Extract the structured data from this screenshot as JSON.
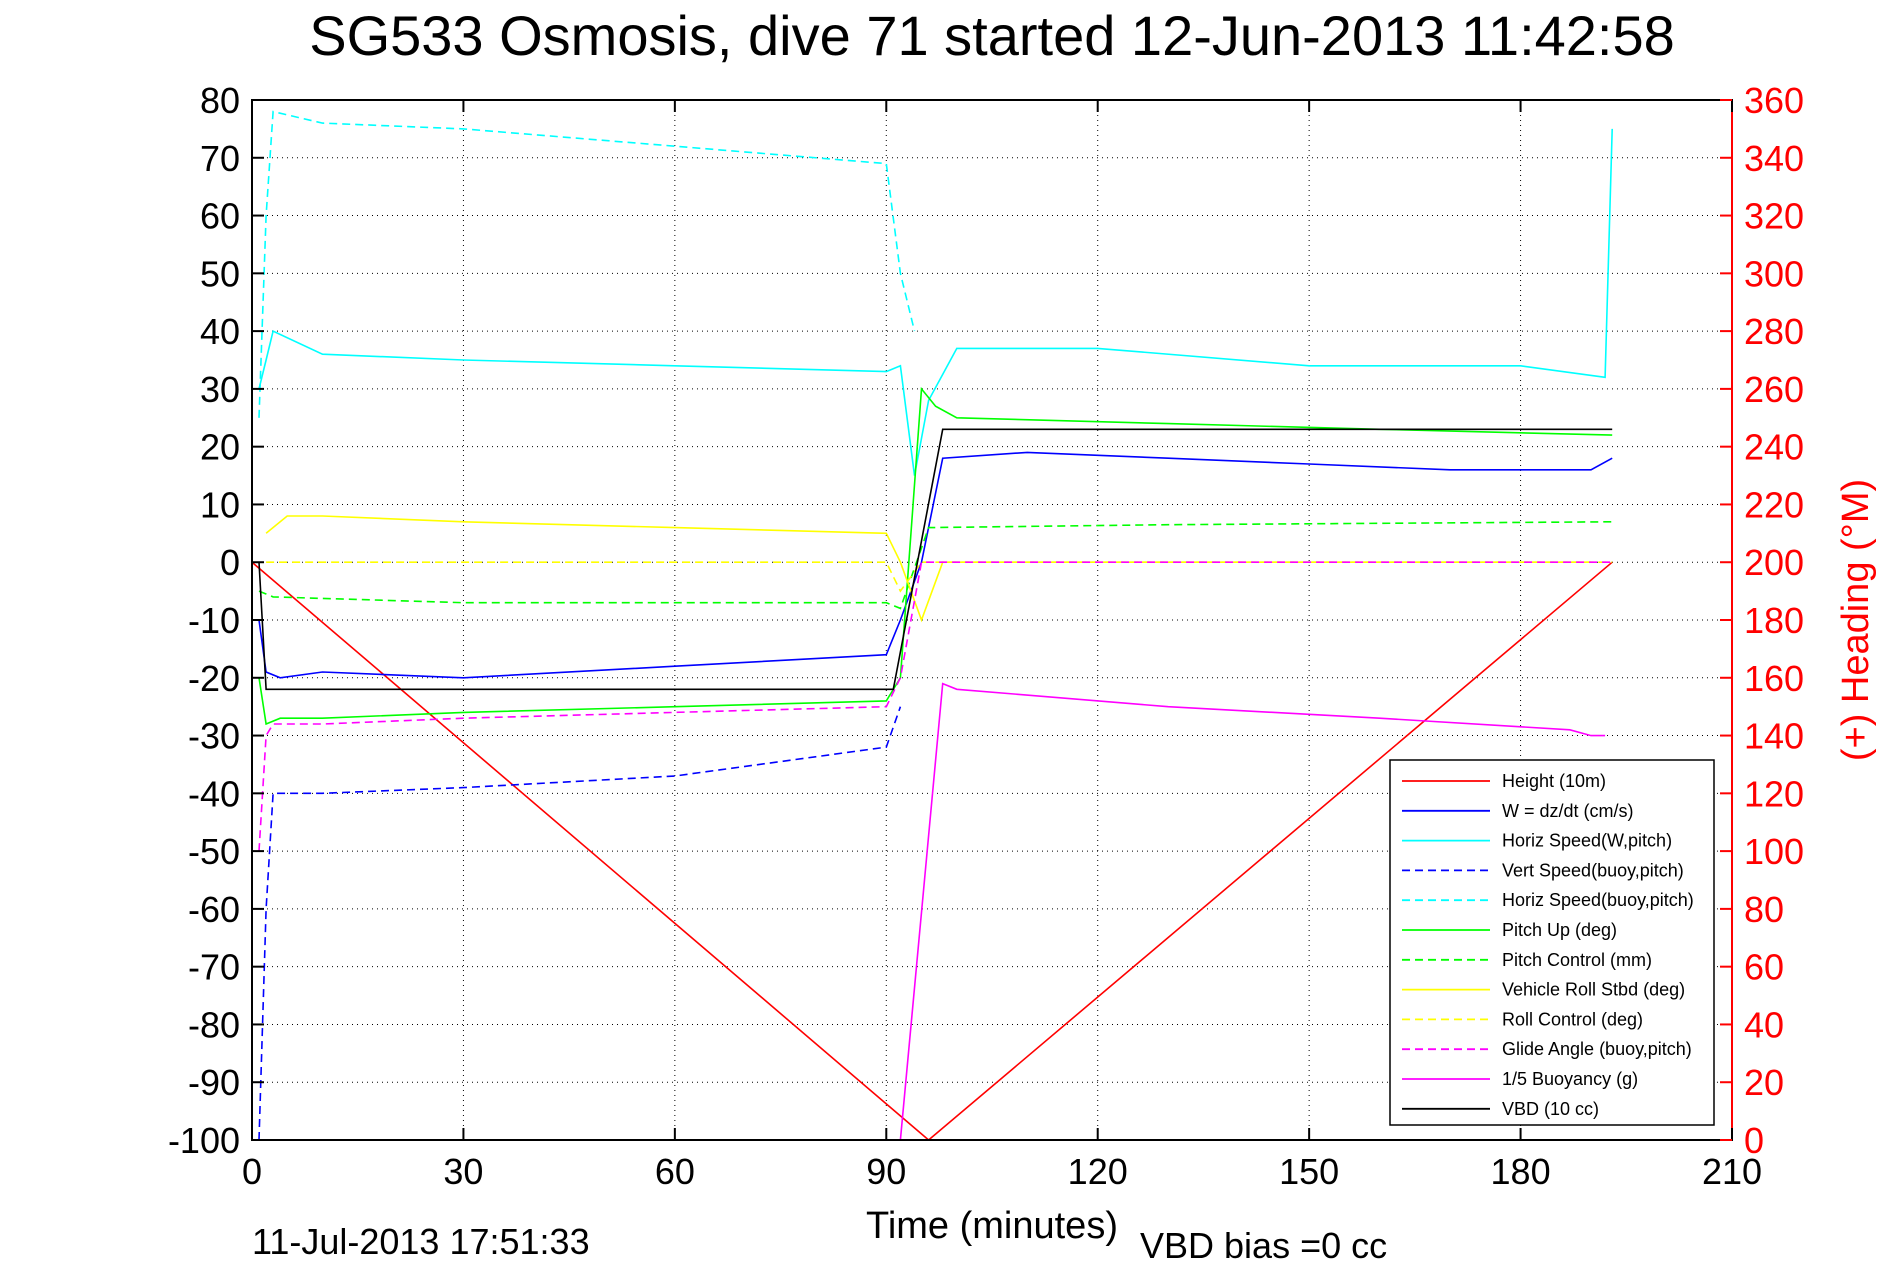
{
  "chart_data": {
    "type": "line",
    "title": "SG533 Osmosis, dive 71 started 12-Jun-2013 11:42:58",
    "xlabel": "Time (minutes)",
    "ylabel_right": "(+) Heading (°M)",
    "xlim": [
      0,
      210
    ],
    "ylim": [
      -100,
      80
    ],
    "ylim_right": [
      0,
      360
    ],
    "xticks": [
      "0",
      "30",
      "60",
      "90",
      "120",
      "150",
      "180",
      "210"
    ],
    "yticks": [
      "80",
      "70",
      "60",
      "50",
      "40",
      "30",
      "20",
      "10",
      "0",
      "-10",
      "-20",
      "-30",
      "-40",
      "-50",
      "-60",
      "-70",
      "-80",
      "-90",
      "-100"
    ],
    "yticks_right": [
      "360",
      "340",
      "320",
      "300",
      "280",
      "260",
      "240",
      "220",
      "200",
      "180",
      "160",
      "140",
      "120",
      "100",
      "80",
      "60",
      "40",
      "20",
      "0"
    ],
    "grid": true,
    "legend_position": "bottom-right",
    "footer_left": "11-Jul-2013 17:51:33",
    "footer_right": "VBD bias =0 cc",
    "series": [
      {
        "name": "Height (10m)",
        "color": "#ff0000",
        "style": "solid",
        "x": [
          0,
          96,
          193
        ],
        "y": [
          0,
          -100,
          0
        ]
      },
      {
        "name": "W = dz/dt (cm/s)",
        "color": "#0000ff",
        "style": "solid",
        "x": [
          1,
          2,
          4,
          10,
          30,
          60,
          90,
          92,
          95,
          98,
          110,
          130,
          150,
          170,
          190,
          193
        ],
        "y": [
          -10,
          -19,
          -20,
          -19,
          -20,
          -18,
          -16,
          -10,
          0,
          18,
          19,
          18,
          17,
          16,
          16,
          18
        ]
      },
      {
        "name": "Horiz Speed(W,pitch)",
        "color": "#00ffff",
        "style": "solid",
        "x": [
          1,
          2,
          3,
          10,
          30,
          60,
          90,
          92,
          94,
          96,
          100,
          120,
          150,
          180,
          192,
          193
        ],
        "y": [
          30,
          35,
          40,
          36,
          35,
          34,
          33,
          34,
          15,
          28,
          37,
          37,
          34,
          34,
          32,
          75
        ]
      },
      {
        "name": "Vert Speed(buoy,pitch)",
        "color": "#0000ff",
        "style": "dashed",
        "x": [
          1,
          2,
          3,
          10,
          30,
          60,
          90,
          92
        ],
        "y": [
          -100,
          -60,
          -40,
          -40,
          -39,
          -37,
          -32,
          -25
        ]
      },
      {
        "name": "Horiz Speed(buoy,pitch)",
        "color": "#00ffff",
        "style": "dashed",
        "x": [
          1,
          2,
          3,
          10,
          30,
          60,
          90,
          92,
          94
        ],
        "y": [
          25,
          60,
          78,
          76,
          75,
          72,
          69,
          50,
          40
        ]
      },
      {
        "name": "Pitch Up (deg)",
        "color": "#00ff00",
        "style": "solid",
        "x": [
          1,
          2,
          4,
          10,
          30,
          60,
          90,
          92,
          95,
          97,
          100,
          130,
          160,
          193
        ],
        "y": [
          -20,
          -28,
          -27,
          -27,
          -26,
          -25,
          -24,
          -20,
          30,
          27,
          25,
          24,
          23,
          22
        ]
      },
      {
        "name": "Pitch Control (mm)",
        "color": "#00ff00",
        "style": "dashed",
        "x": [
          1,
          3,
          30,
          60,
          90,
          92,
          96,
          130,
          193
        ],
        "y": [
          -5,
          -6,
          -7,
          -7,
          -7,
          -8,
          6,
          6.5,
          7
        ]
      },
      {
        "name": "Vehicle Roll Stbd (deg)",
        "color": "#ffff00",
        "style": "solid",
        "x": [
          2,
          5,
          10,
          30,
          60,
          90,
          92,
          95,
          98,
          130,
          190
        ],
        "y": [
          5,
          8,
          8,
          7,
          6,
          5,
          0,
          -10,
          0,
          0,
          0
        ]
      },
      {
        "name": "Roll Control (deg)",
        "color": "#ffff00",
        "style": "dashed",
        "x": [
          2,
          5,
          60,
          90,
          92,
          95,
          193
        ],
        "y": [
          0,
          0,
          0,
          0,
          -5,
          0,
          0
        ]
      },
      {
        "name": "Glide Angle (buoy,pitch)",
        "color": "#ff00ff",
        "style": "dashed",
        "x": [
          1,
          2,
          3,
          10,
          30,
          60,
          90,
          92,
          95,
          130,
          190,
          193
        ],
        "y": [
          -50,
          -30,
          -28,
          -28,
          -27,
          -26,
          -25,
          -20,
          0,
          0,
          0,
          0
        ]
      },
      {
        "name": "1/5 Buoyancy (g)",
        "color": "#ff00ff",
        "style": "solid",
        "x": [
          91,
          92,
          98,
          100,
          130,
          160,
          187,
          190,
          192
        ],
        "y": [
          -100,
          -100,
          -21,
          -22,
          -25,
          -27,
          -29,
          -30,
          -30
        ]
      },
      {
        "name": "VBD (10 cc)",
        "color": "#000000",
        "style": "solid",
        "x": [
          1,
          2,
          91,
          98,
          193
        ],
        "y": [
          0,
          -22,
          -22,
          23,
          23
        ]
      }
    ]
  }
}
